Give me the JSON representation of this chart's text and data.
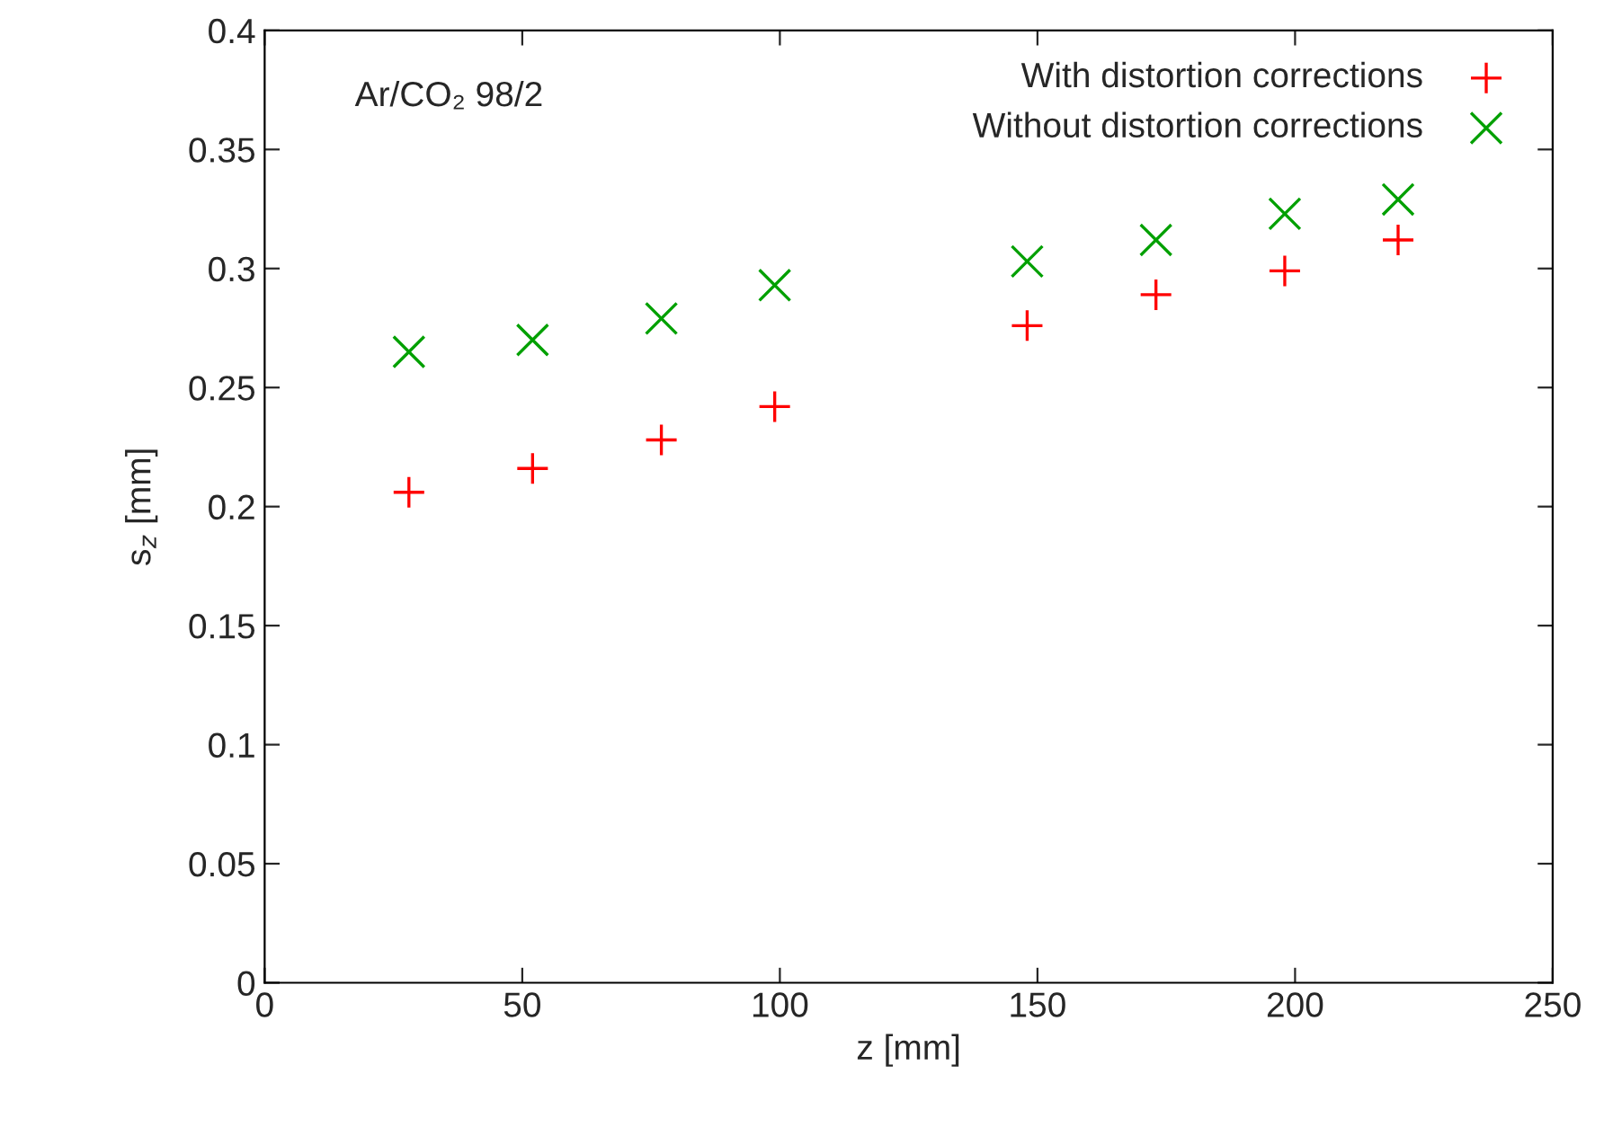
{
  "chart_data": {
    "type": "scatter",
    "xlabel": "z [mm]",
    "ylabel": "s$_{z}$ [mm]",
    "x": [
      28,
      52,
      77,
      99,
      148,
      173,
      198,
      220
    ],
    "series": [
      {
        "name": "With distortion corrections",
        "color": "#ff0000",
        "marker": "cross",
        "values": [
          0.206,
          0.216,
          0.228,
          0.242,
          0.276,
          0.289,
          0.299,
          0.312
        ]
      },
      {
        "name": "Without distortion corrections",
        "color": "#00a000",
        "marker": "x",
        "values": [
          0.265,
          0.27,
          0.279,
          0.293,
          0.303,
          0.312,
          0.323,
          0.329
        ]
      }
    ],
    "annotations": [
      "Ar/CO₂ 98/2"
    ],
    "xlim": [
      0,
      250
    ],
    "xticks": [
      0,
      50,
      100,
      150,
      200,
      250
    ],
    "ylim": [
      0,
      0.4
    ],
    "yticks": [
      0,
      0.05,
      0.1,
      0.15,
      0.2,
      0.25,
      0.3,
      0.35,
      0.4
    ],
    "grid": false,
    "legend": "top right"
  }
}
